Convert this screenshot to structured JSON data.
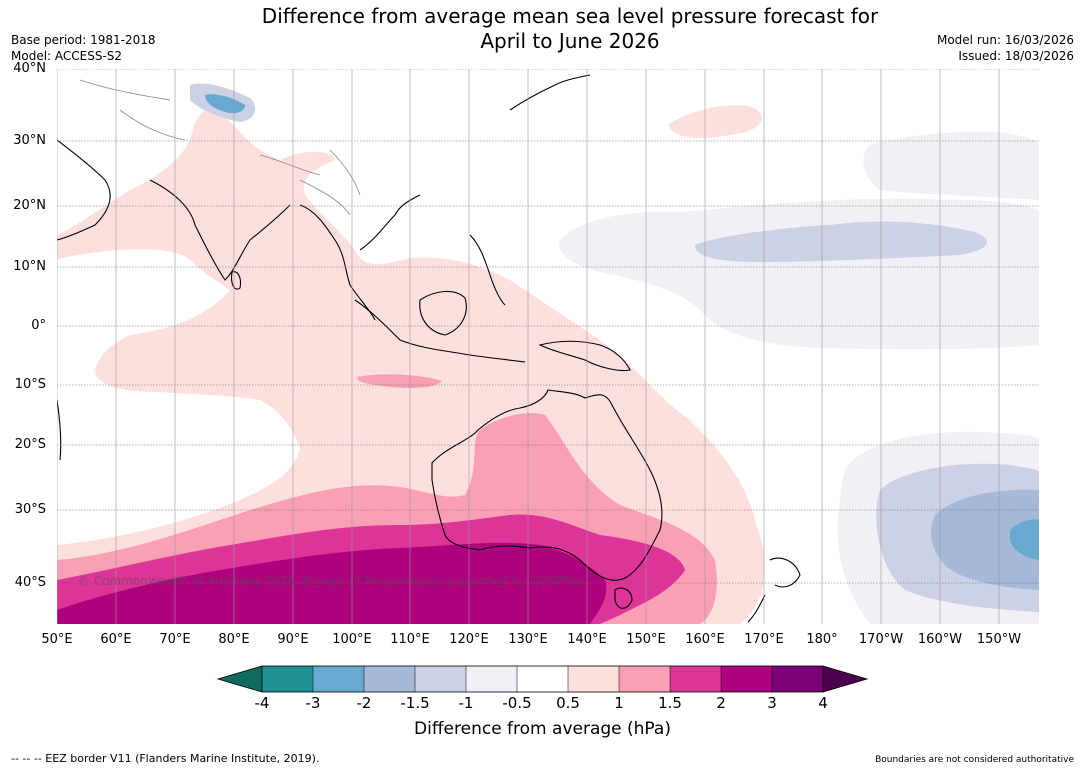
{
  "title": {
    "line1": "Difference from average mean sea level pressure forecast for",
    "line2": "April to June 2026"
  },
  "meta_left": {
    "base_period": "Base period: 1981-2018",
    "model": "Model: ACCESS-S2"
  },
  "meta_right": {
    "model_run": "Model run: 16/03/2026",
    "issued": "Issued: 18/03/2026"
  },
  "map": {
    "lat_labels": [
      "40°N",
      "30°N",
      "20°N",
      "10°N",
      "0°",
      "10°S",
      "20°S",
      "30°S",
      "40°S"
    ],
    "lon_labels": [
      "50°E",
      "60°E",
      "70°E",
      "80°E",
      "90°E",
      "100°E",
      "110°E",
      "120°E",
      "130°E",
      "140°E",
      "150°E",
      "160°E",
      "170°E",
      "180°",
      "170°W",
      "160°W",
      "150°W"
    ],
    "copyright": "© Commonwealth of Australia 2026, Bureau of Meteorology, supported by COSPPac"
  },
  "colorbar": {
    "ticks": [
      "-4",
      "-3",
      "-2",
      "-1.5",
      "-1",
      "-0.5",
      "0.5",
      "1",
      "1.5",
      "2",
      "3",
      "4"
    ],
    "colors": [
      "#0e6b5e",
      "#1f9196",
      "#67a9cf",
      "#a6b9d9",
      "#cdd1e5",
      "#f2eff6",
      "#ffffff",
      "#fde0dd",
      "#f99fb6",
      "#dd3497",
      "#ae017e",
      "#7a0177",
      "#4d004b"
    ],
    "label": "Difference from average (hPa)"
  },
  "footer": {
    "left": "--  --  -- EEZ border V11 (Flanders Marine Institute, 2019).",
    "right": "Boundaries are not considered authoritative"
  }
}
